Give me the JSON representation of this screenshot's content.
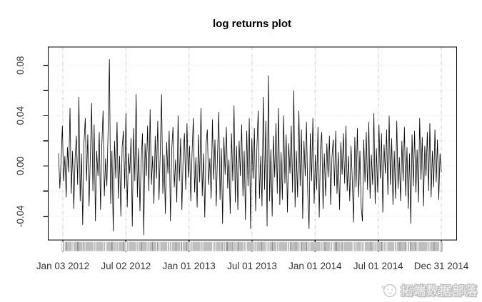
{
  "page": {
    "background": "#ffffff"
  },
  "chart_data": {
    "type": "line",
    "title": "log returns plot",
    "series_name": "log returns",
    "line_color": "#000000",
    "grid": true,
    "grid_color": "#d9d9d9",
    "legend_position": "none",
    "x_tick_labels": [
      "Jan 03 2012",
      "Jul 02 2012",
      "Jan 01 2013",
      "Jul 01 2013",
      "Jan 01 2014",
      "Jul 01 2014",
      "Dec 31 2014"
    ],
    "x_range": [
      "Jan 03 2012",
      "Dec 31 2014"
    ],
    "y_ticks": [
      -0.04,
      -0.02,
      0,
      0.02,
      0.04,
      0.06,
      0.08
    ],
    "y_labeled_ticks": [
      -0.04,
      0,
      0.04,
      0.08
    ],
    "y_tick_labels": [
      "-0.04",
      "0.00",
      "0.04",
      "0.08"
    ],
    "ylim": [
      -0.059,
      0.0946
    ],
    "n_points": 302,
    "values": [
      0.01,
      -0.018,
      0.004,
      0.032,
      -0.012,
      0.008,
      -0.025,
      0.015,
      -0.005,
      0.046,
      -0.022,
      0.012,
      -0.034,
      0.006,
      0.024,
      -0.015,
      0.055,
      -0.028,
      0.01,
      -0.047,
      0.018,
      0.038,
      -0.012,
      0.025,
      -0.032,
      0.008,
      0.05,
      -0.02,
      0.033,
      -0.044,
      0.012,
      -0.008,
      0.027,
      -0.035,
      0.016,
      0.044,
      -0.024,
      0.006,
      -0.016,
      0.03,
      0.085,
      -0.03,
      0.012,
      -0.052,
      0.02,
      -0.01,
      0.035,
      -0.026,
      0.008,
      -0.04,
      0.015,
      0.028,
      -0.018,
      0.042,
      -0.033,
      0.01,
      -0.006,
      0.022,
      -0.048,
      0.03,
      -0.012,
      0.057,
      -0.025,
      0.014,
      -0.036,
      0.005,
      0.026,
      -0.055,
      0.018,
      -0.008,
      0.032,
      -0.02,
      0.045,
      -0.015,
      0.008,
      -0.03,
      0.024,
      -0.01,
      0.036,
      -0.027,
      0.012,
      0.057,
      -0.022,
      0.009,
      -0.038,
      0.019,
      -0.006,
      0.028,
      -0.044,
      0.013,
      0.031,
      -0.017,
      0.005,
      -0.029,
      0.04,
      -0.012,
      0.022,
      -0.035,
      0.008,
      0.026,
      -0.019,
      0.034,
      -0.009,
      0.016,
      -0.028,
      0.011,
      0.038,
      -0.021,
      0.007,
      -0.033,
      0.025,
      -0.013,
      0.046,
      -0.024,
      0.01,
      -0.041,
      0.017,
      0.029,
      -0.015,
      0.006,
      -0.026,
      0.037,
      -0.011,
      0.021,
      -0.032,
      0.009,
      0.043,
      -0.027,
      0.014,
      -0.046,
      0.023,
      -0.007,
      0.031,
      -0.018,
      0.005,
      -0.038,
      0.026,
      -0.012,
      0.048,
      -0.029,
      0.016,
      -0.035,
      0.02,
      -0.008,
      0.033,
      -0.024,
      0.012,
      -0.043,
      0.028,
      -0.016,
      0.038,
      -0.05,
      0.022,
      -0.01,
      0.03,
      -0.036,
      0.015,
      0.044,
      -0.026,
      0.008,
      -0.032,
      0.055,
      -0.019,
      0.036,
      -0.048,
      0.072,
      -0.028,
      0.013,
      -0.04,
      0.024,
      -0.009,
      0.034,
      -0.022,
      0.046,
      -0.031,
      0.011,
      -0.027,
      0.04,
      -0.014,
      0.025,
      -0.037,
      0.018,
      -0.006,
      0.032,
      -0.021,
      0.06,
      -0.033,
      0.012,
      -0.025,
      0.044,
      -0.016,
      0.029,
      -0.042,
      0.02,
      -0.008,
      0.035,
      -0.023,
      -0.05,
      0.026,
      -0.012,
      0.038,
      -0.03,
      0.009,
      -0.019,
      0.031,
      -0.041,
      0.015,
      0.027,
      -0.034,
      0.01,
      -0.024,
      0.018,
      -0.009,
      0.024,
      -0.031,
      0.007,
      0.021,
      -0.016,
      0.028,
      -0.022,
      0.011,
      -0.035,
      0.019,
      -0.007,
      0.026,
      -0.014,
      0.032,
      -0.02,
      0.008,
      -0.028,
      0.016,
      -0.011,
      -0.045,
      0.023,
      -0.017,
      0.03,
      -0.025,
      0.012,
      -0.033,
      -0.044,
      0.021,
      -0.013,
      0.027,
      -0.019,
      0.035,
      -0.026,
      0.009,
      -0.015,
      0.042,
      -0.03,
      0.014,
      -0.021,
      0.033,
      -0.01,
      0.026,
      -0.037,
      0.017,
      -0.006,
      0.029,
      -0.023,
      0.04,
      -0.015,
      0.022,
      -0.031,
      0.012,
      -0.026,
      0.036,
      -0.018,
      0.007,
      -0.028,
      0.02,
      -0.012,
      0.031,
      -0.024,
      0.015,
      -0.034,
      0.01,
      -0.046,
      0.025,
      -0.016,
      0.028,
      -0.021,
      0.013,
      -0.029,
      0.038,
      -0.011,
      0.023,
      -0.032,
      0.016,
      -0.008,
      0.027,
      -0.02,
      0.034,
      -0.025,
      0.012,
      -0.017,
      0.029,
      -0.013,
      0.021,
      -0.027,
      0.01,
      -0.005
    ]
  },
  "watermark": {
    "text": "拓端数据部落",
    "color": "#bdbdbd",
    "logo_icon": "tecdat-face-logo"
  }
}
